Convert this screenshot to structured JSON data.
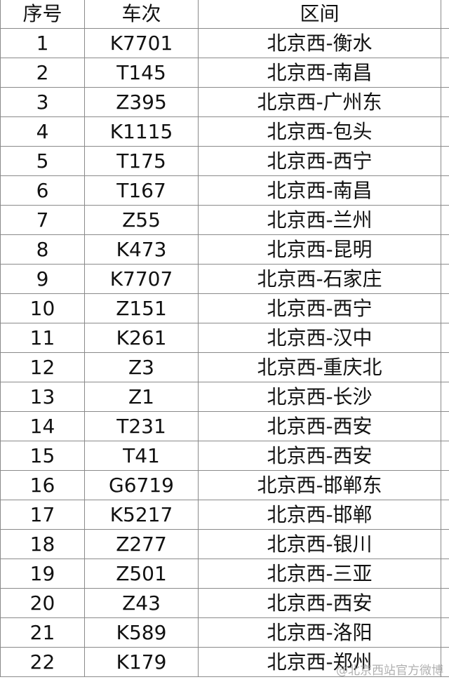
{
  "headers": [
    "序号",
    "车次",
    "区间"
  ],
  "rows": [
    [
      "1",
      "K7701",
      "北京西-衡水"
    ],
    [
      "2",
      "T145",
      "北京西-南昌"
    ],
    [
      "3",
      "Z395",
      "北京西-广州东"
    ],
    [
      "4",
      "K1115",
      "北京西-包头"
    ],
    [
      "5",
      "T175",
      "北京西-西宁"
    ],
    [
      "6",
      "T167",
      "北京西-南昌"
    ],
    [
      "7",
      "Z55",
      "北京西-兰州"
    ],
    [
      "8",
      "K473",
      "北京西-昆明"
    ],
    [
      "9",
      "K7707",
      "北京西-石家庄"
    ],
    [
      "10",
      "Z151",
      "北京西-西宁"
    ],
    [
      "11",
      "K261",
      "北京西-汉中"
    ],
    [
      "12",
      "Z3",
      "北京西-重庆北"
    ],
    [
      "13",
      "Z1",
      "北京西-长沙"
    ],
    [
      "14",
      "T231",
      "北京西-西安"
    ],
    [
      "15",
      "T41",
      "北京西-西安"
    ],
    [
      "16",
      "G6719",
      "北京西-邯郸东"
    ],
    [
      "17",
      "K5217",
      "北京西-邯郸"
    ],
    [
      "18",
      "Z277",
      "北京西-银川"
    ],
    [
      "19",
      "Z501",
      "北京西-三亚"
    ],
    [
      "20",
      "Z43",
      "北京西-西安"
    ],
    [
      "21",
      "K589",
      "北京西-洛阳"
    ],
    [
      "22",
      "K179",
      "北京西-郑州"
    ]
  ],
  "watermark": "@北京西站官方微博"
}
